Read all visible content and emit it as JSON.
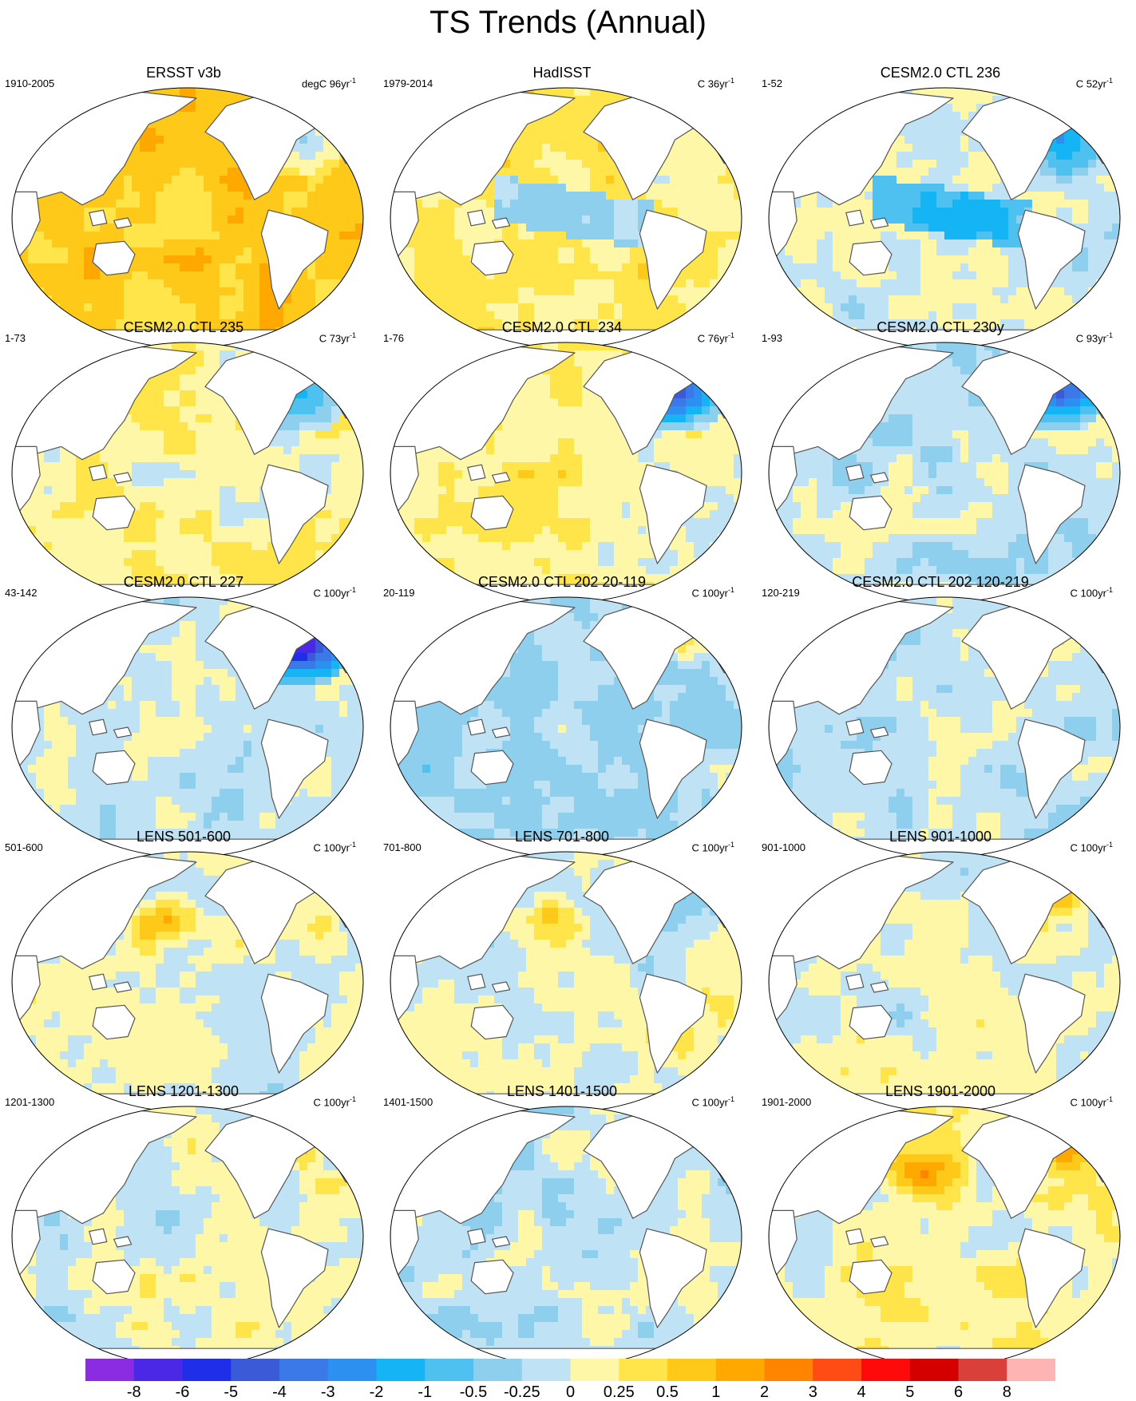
{
  "title": "TS Trends (Annual)",
  "panels": [
    {
      "title": "ERSST v3b",
      "period": "1910-2005",
      "units": "degC 96yr",
      "units_sup": "-1",
      "field": {
        "base": 5,
        "coolNE": 1,
        "coolNEStrength": 0.7
      }
    },
    {
      "title": "HadISST",
      "period": "1979-2014",
      "units": "C 36yr",
      "units_sup": "-1",
      "field": {
        "base": 3,
        "coolNE": 0,
        "coolNEStrength": 0,
        "blueBandCentralPacific": 1
      }
    },
    {
      "title": "CESM2.0 CTL 236",
      "period": "1-52",
      "units": "C 52yr",
      "units_sup": "-1",
      "field": {
        "base": 1,
        "coolNE": 1,
        "coolNEStrength": 0.8,
        "blueBandCentralPacific": 1
      }
    },
    {
      "title": "CESM2.0 CTL 235",
      "period": "1-73",
      "units": "C 73yr",
      "units_sup": "-1",
      "field": {
        "base": 2,
        "coolNE": 1,
        "coolNEStrength": 0.9
      }
    },
    {
      "title": "CESM2.0 CTL 234",
      "period": "1-76",
      "units": "C 76yr",
      "units_sup": "-1",
      "field": {
        "base": 2,
        "coolNE": 1,
        "coolNEStrength": 1.3
      }
    },
    {
      "title": "CESM2.0 CTL 230y",
      "period": "1-93",
      "units": "C 93yr",
      "units_sup": "-1",
      "field": {
        "base": 0,
        "coolNE": 1,
        "coolNEStrength": 1.0
      }
    },
    {
      "title": "CESM2.0 CTL 227",
      "period": "43-142",
      "units": "C 100yr",
      "units_sup": "-1",
      "field": {
        "base": 0,
        "coolNE": 1,
        "coolNEStrength": 1.6
      }
    },
    {
      "title": "CESM2.0 CTL 202 20-119",
      "period": "20-119",
      "units": "C 100yr",
      "units_sup": "-1",
      "field": {
        "base": -1,
        "coolNE": 0,
        "coolNEStrength": 0,
        "warmNE": 1
      }
    },
    {
      "title": "CESM2.0 CTL 202 120-219",
      "period": "120-219",
      "units": "C 100yr",
      "units_sup": "-1",
      "field": {
        "base": 0,
        "coolNE": 0,
        "coolNEStrength": 0,
        "warmNE": 1
      }
    },
    {
      "title": "LENS 501-600",
      "period": "501-600",
      "units": "C 100yr",
      "units_sup": "-1",
      "field": {
        "base": 1,
        "coolNE": 0,
        "coolNEStrength": 0,
        "warmNPac": 1
      }
    },
    {
      "title": "LENS 701-800",
      "period": "701-800",
      "units": "C 100yr",
      "units_sup": "-1",
      "field": {
        "base": 1,
        "coolNE": 1,
        "coolNEStrength": 0.5,
        "warmNPac": 1
      }
    },
    {
      "title": "LENS 901-1000",
      "period": "901-1000",
      "units": "C 100yr",
      "units_sup": "-1",
      "field": {
        "base": 1,
        "coolNE": 0,
        "coolNEStrength": 0,
        "warmNE": 1
      }
    },
    {
      "title": "LENS 1201-1300",
      "period": "1201-1300",
      "units": "C 100yr",
      "units_sup": "-1",
      "field": {
        "base": 1,
        "coolNE": 0,
        "coolNEStrength": 0,
        "warmNE": 1
      }
    },
    {
      "title": "LENS 1401-1500",
      "period": "1401-1500",
      "units": "C 100yr",
      "units_sup": "-1",
      "field": {
        "base": 0,
        "coolNE": 0,
        "coolNEStrength": 0
      }
    },
    {
      "title": "LENS 1901-2000",
      "period": "1901-2000",
      "units": "C 100yr",
      "units_sup": "-1",
      "field": {
        "base": 2,
        "coolNE": 0,
        "coolNEStrength": 0,
        "warmNE": 1,
        "warmNPac": 1
      }
    }
  ],
  "colorbar": {
    "colors": [
      "#8b2be2",
      "#4b28e6",
      "#1f2ee8",
      "#3a5ad8",
      "#3b78e8",
      "#2b90f0",
      "#14b4f5",
      "#4ec1f0",
      "#8fcfee",
      "#bfe3f5",
      "#fff7a8",
      "#ffe44a",
      "#ffc91a",
      "#ffa800",
      "#ff8400",
      "#ff4b14",
      "#ff0a0a",
      "#d40000",
      "#d9403a",
      "#ffb4b4"
    ],
    "labels": [
      "-8",
      "-6",
      "-5",
      "-4",
      "-3",
      "-2",
      "-1",
      "-0.5",
      "-0.25",
      "0",
      "0.25",
      "0.5",
      "1",
      "2",
      "3",
      "4",
      "5",
      "6",
      "8"
    ]
  }
}
